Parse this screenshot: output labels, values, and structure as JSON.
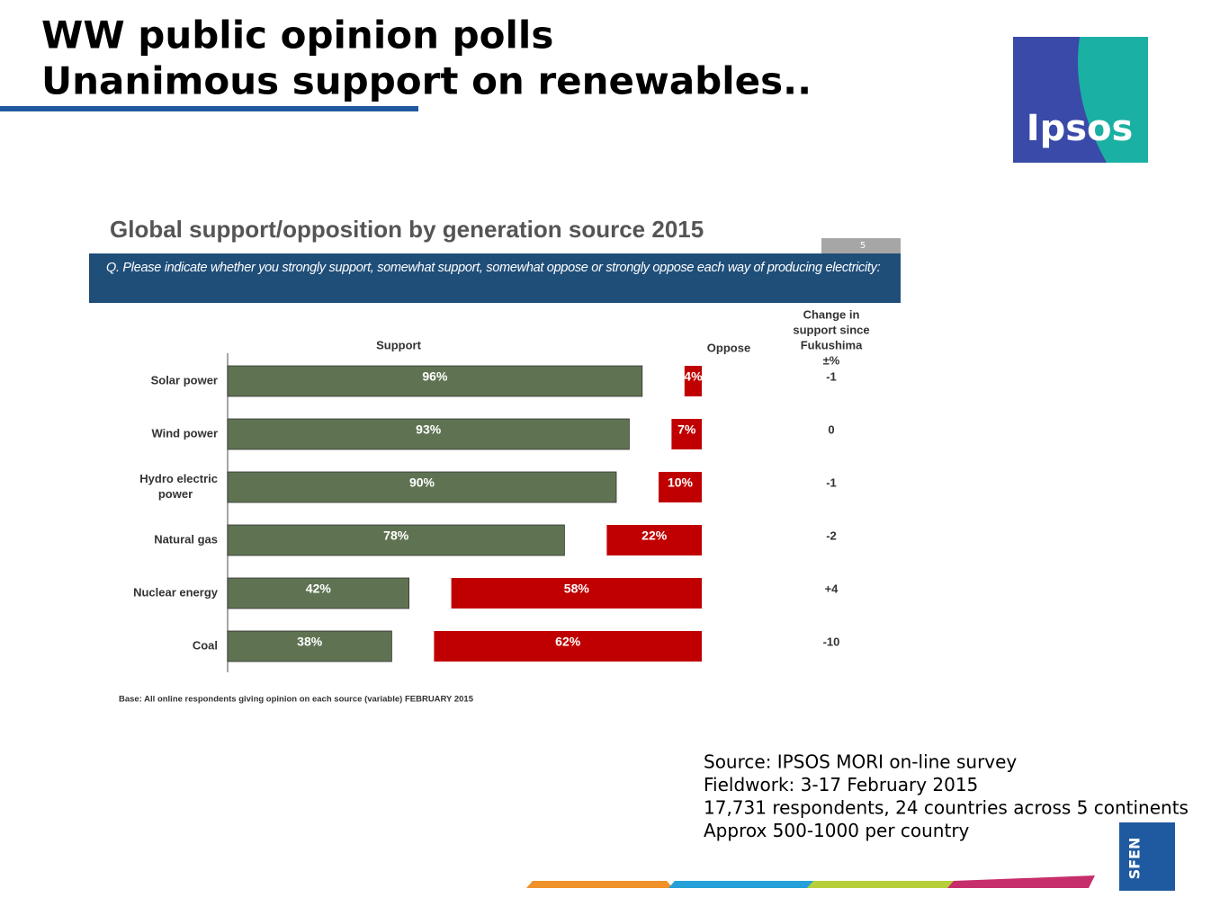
{
  "slide": {
    "title_lines": [
      "WW public opinion polls",
      "Unanimous support on renewables.."
    ],
    "logo": "Ipsos",
    "source_lines": [
      "Source: IPSOS MORI on-line survey",
      "Fieldwork: 3-17 February 2015",
      "17,731 respondents, 24 countries across 5 continents",
      "Approx 500-1000 per country"
    ],
    "footer_logo": "SFEN"
  },
  "chart_data": {
    "type": "diverging-bar",
    "title": "Global support/opposition by generation source 2015",
    "page_number": "5",
    "question": "Q. Please indicate whether you strongly support, somewhat support, somewhat oppose or strongly oppose each way of producing electricity:",
    "categories": [
      "Solar power",
      "Wind power",
      "Hydro electric power",
      "Natural gas",
      "Nuclear energy",
      "Coal"
    ],
    "series": [
      {
        "name": "Support",
        "color": "#5f7352",
        "values": [
          96,
          93,
          90,
          78,
          42,
          38
        ],
        "value_labels": [
          "96%",
          "93%",
          "90%",
          "78%",
          "42%",
          "38%"
        ]
      },
      {
        "name": "Oppose",
        "color": "#c00000",
        "values": [
          4,
          7,
          10,
          22,
          58,
          62
        ],
        "value_labels": [
          "4%",
          "7%",
          "10%",
          "22%",
          "58%",
          "62%"
        ]
      }
    ],
    "change": {
      "header_lines": [
        "Change in",
        "support since",
        "Fukushima",
        "±%"
      ],
      "values": [
        -1,
        0,
        -1,
        -2,
        4,
        -10
      ],
      "value_labels": [
        "-1",
        "0",
        "-1",
        "-2",
        "+4",
        "-10"
      ]
    },
    "base_note": "Base: All online respondents giving opinion on each source (variable) FEBRUARY 2015"
  }
}
